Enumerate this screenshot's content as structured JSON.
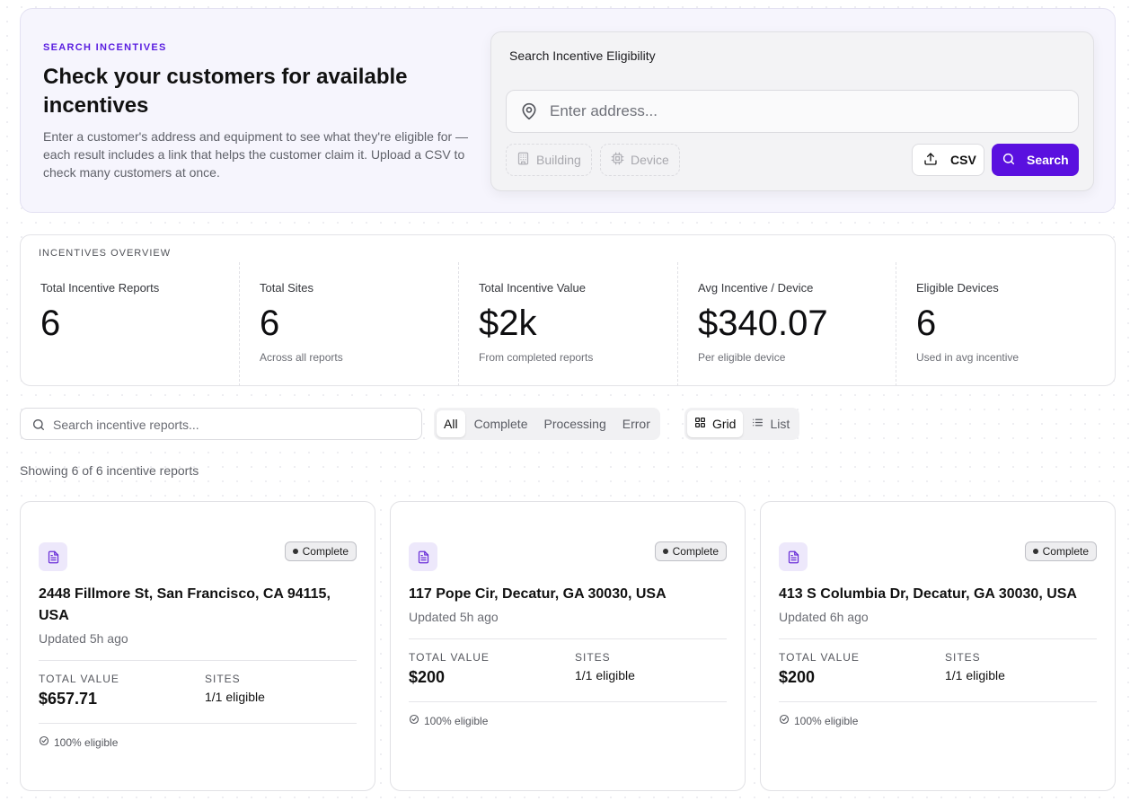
{
  "hero": {
    "eyebrow": "SEARCH INCENTIVES",
    "title": "Check your customers for available incentives",
    "description": "Enter a customer's address and equipment to see what they're eligible for — each result includes a link that helps the customer claim it. Upload a CSV to check many customers at once."
  },
  "search_panel": {
    "title": "Search Incentive Eligibility",
    "address_placeholder": "Enter address...",
    "building_label": "Building",
    "device_label": "Device",
    "csv_label": "CSV",
    "search_label": "Search",
    "accent_color": "#5a10df"
  },
  "overview": {
    "title": "INCENTIVES OVERVIEW",
    "stats": [
      {
        "label": "Total Incentive Reports",
        "value": "6",
        "sub": ""
      },
      {
        "label": "Total Sites",
        "value": "6",
        "sub": "Across all reports"
      },
      {
        "label": "Total Incentive Value",
        "value": "$2k",
        "sub": "From completed reports"
      },
      {
        "label": "Avg Incentive / Device",
        "value": "$340.07",
        "sub": "Per eligible device"
      },
      {
        "label": "Eligible Devices",
        "value": "6",
        "sub": "Used in avg incentive"
      }
    ]
  },
  "toolbar": {
    "search_placeholder": "Search incentive reports...",
    "filters": [
      "All",
      "Complete",
      "Processing",
      "Error"
    ],
    "active_filter": "All",
    "views": [
      "Grid",
      "List"
    ],
    "active_view": "Grid"
  },
  "showing": "Showing 6 of 6 incentive reports",
  "cards": [
    {
      "status": "Complete",
      "address": "2448 Fillmore St, San Francisco, CA 94115, USA",
      "updated": "Updated 5h ago",
      "total_value_label": "TOTAL VALUE",
      "total_value": "$657.71",
      "sites_label": "SITES",
      "sites": "1/1 eligible",
      "eligible": "100% eligible"
    },
    {
      "status": "Complete",
      "address": "117 Pope Cir, Decatur, GA 30030, USA",
      "updated": "Updated 5h ago",
      "total_value_label": "TOTAL VALUE",
      "total_value": "$200",
      "sites_label": "SITES",
      "sites": "1/1 eligible",
      "eligible": "100% eligible"
    },
    {
      "status": "Complete",
      "address": "413 S Columbia Dr, Decatur, GA 30030, USA",
      "updated": "Updated 6h ago",
      "total_value_label": "TOTAL VALUE",
      "total_value": "$200",
      "sites_label": "SITES",
      "sites": "1/1 eligible",
      "eligible": "100% eligible"
    }
  ]
}
